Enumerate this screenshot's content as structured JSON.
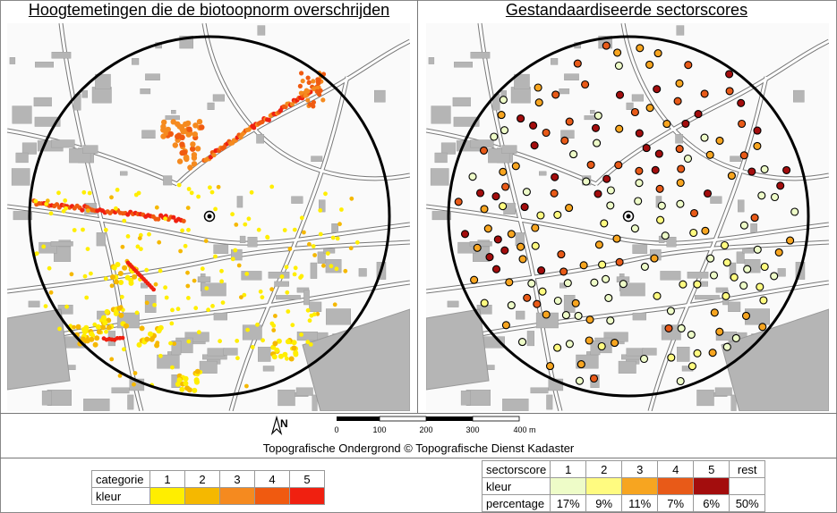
{
  "titles": {
    "left": "Hoogtemetingen die de biotoopnorm overschrijden",
    "right": "Gestandaardiseerde sectorscores"
  },
  "north_label": "N",
  "scale": {
    "labels": [
      "0",
      "100",
      "200",
      "300",
      "400 m"
    ]
  },
  "credit": "Topografische Ondergrond © Topografische Dienst Kadaster",
  "legend_left": {
    "row1_label": "categorie",
    "row2_label": "kleur",
    "categories": [
      "1",
      "2",
      "3",
      "4",
      "5"
    ],
    "colors": [
      "#ffee00",
      "#f5b800",
      "#f58a1f",
      "#f05a10",
      "#f02010"
    ]
  },
  "legend_right": {
    "row1_label": "sectorscore",
    "row2_label": "kleur",
    "row3_label": "percentage",
    "scores": [
      "1",
      "2",
      "3",
      "4",
      "5",
      "rest"
    ],
    "colors": [
      "#eefcc8",
      "#fffb80",
      "#f7a520",
      "#e85a18",
      "#a30d0d",
      "#ffffff"
    ],
    "percentages": [
      "17%",
      "9%",
      "11%",
      "7%",
      "6%",
      "50%"
    ]
  }
}
